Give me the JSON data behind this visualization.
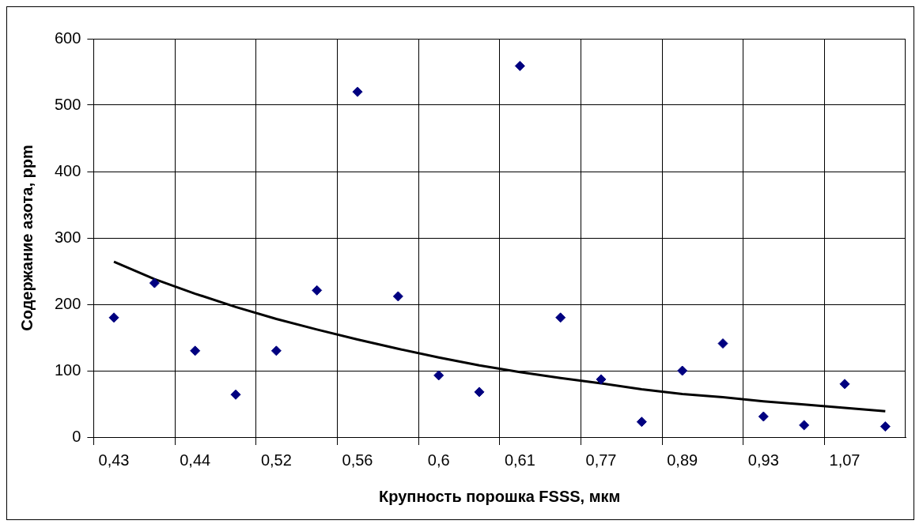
{
  "chart_data": {
    "type": "scatter",
    "xlabel": "Крупность порошка FSSS, мкм",
    "ylabel": "Содержание азота, ppm",
    "categories": [
      "0,43",
      null,
      "0,44",
      null,
      "0,52",
      null,
      "0,56",
      null,
      "0,6",
      null,
      "0,61",
      null,
      "0,77",
      null,
      "0,89",
      null,
      "0,93",
      null,
      "1,07",
      null
    ],
    "series": [
      {
        "type": "scatter",
        "color": "#000080",
        "marker": "diamond",
        "values": [
          180,
          232,
          130,
          64,
          130,
          221,
          520,
          212,
          93,
          68,
          559,
          180,
          87,
          23,
          100,
          141,
          31,
          18,
          80,
          16
        ]
      },
      {
        "type": "line",
        "color": "#000000",
        "marker": "none",
        "line_style": "solid",
        "values": [
          264,
          238,
          216,
          196,
          178,
          162,
          147,
          133,
          120,
          108,
          98,
          89,
          81,
          72,
          65,
          60,
          54,
          49,
          44,
          39
        ]
      }
    ],
    "ylim": [
      0,
      600
    ],
    "yticks": [
      0,
      100,
      200,
      300,
      400,
      500,
      600
    ],
    "grid": true,
    "legend": false
  }
}
